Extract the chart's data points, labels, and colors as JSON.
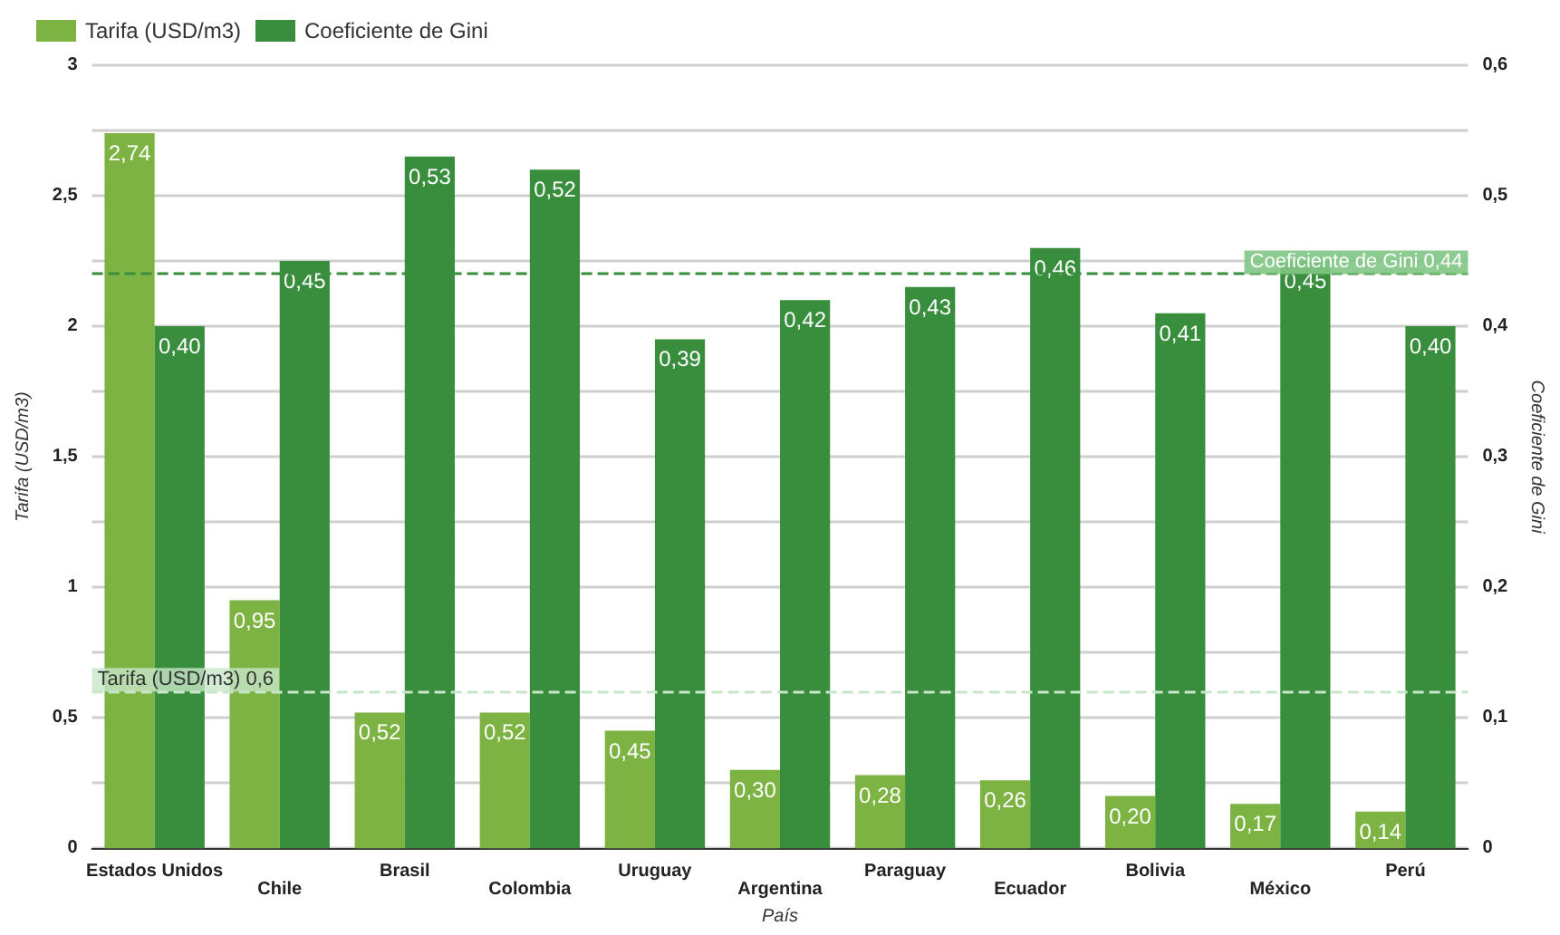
{
  "chart_data": {
    "type": "bar",
    "xlabel": "País",
    "ylabel": "Tarifa (USD/m3)",
    "y2label": "Coeficiente de Gini",
    "categories": [
      "Estados Unidos",
      "Chile",
      "Brasil",
      "Colombia",
      "Uruguay",
      "Argentina",
      "Paraguay",
      "Ecuador",
      "Bolivia",
      "México",
      "Perú"
    ],
    "series": [
      {
        "name": "Tarifa (USD/m3)",
        "color": "#7cb342",
        "values": [
          2.74,
          0.95,
          0.52,
          0.52,
          0.45,
          0.3,
          0.28,
          0.26,
          0.2,
          0.17,
          0.14
        ],
        "value_labels": [
          "2,74",
          "0,95",
          "0,52",
          "0,52",
          "0,45",
          "0,30",
          "0,28",
          "0,26",
          "0,20",
          "0,17",
          "0,14"
        ]
      },
      {
        "name": "Coeficiente de Gini",
        "color": "#388e3c",
        "axis": "y2",
        "values": [
          0.4,
          0.45,
          0.53,
          0.52,
          0.39,
          0.42,
          0.43,
          0.46,
          0.41,
          0.45,
          0.4
        ],
        "value_labels": [
          "0,40",
          "0,45",
          "0,53",
          "0,52",
          "0,39",
          "0,42",
          "0,43",
          "0,46",
          "0,41",
          "0,45",
          "0,40"
        ]
      }
    ],
    "ylim": [
      0,
      3
    ],
    "yticks": [
      0,
      {
        "value": 0.25,
        "label": null
      },
      {
        "value": 0.5,
        "label": "0,5"
      },
      {
        "value": 0.75,
        "label": null
      },
      1,
      {
        "value": 1.25,
        "label": null
      },
      {
        "value": 1.5,
        "label": "1,5"
      },
      {
        "value": 1.75,
        "label": null
      },
      2,
      {
        "value": 2.25,
        "label": null
      },
      {
        "value": 2.5,
        "label": "2,5"
      },
      {
        "value": 2.75,
        "label": null
      },
      3
    ],
    "y2lim": [
      0,
      0.6
    ],
    "y2ticks": [
      0,
      {
        "value": 0.05,
        "label": null
      },
      {
        "value": 0.1,
        "label": "0,1"
      },
      {
        "value": 0.15,
        "label": null
      },
      {
        "value": 0.2,
        "label": "0,2"
      },
      {
        "value": 0.25,
        "label": null
      },
      {
        "value": 0.3,
        "label": "0,3"
      },
      {
        "value": 0.35,
        "label": null
      },
      {
        "value": 0.4,
        "label": "0,4"
      },
      {
        "value": 0.45,
        "label": null
      },
      {
        "value": 0.5,
        "label": "0,5"
      },
      {
        "value": 0.55,
        "label": null
      },
      {
        "value": 0.6,
        "label": "0,6"
      }
    ],
    "ref_lines": [
      {
        "axis": "y",
        "value": 0.6,
        "label": "Tarifa (USD/m3) 0,6",
        "color": "#c8e6c9",
        "line_style": "dashed"
      },
      {
        "axis": "y2",
        "value": 0.44,
        "label": "Coeficiente de Gini 0,44",
        "color": "#388e3c",
        "line_style": "dashed"
      }
    ],
    "grid": "y",
    "legend": "top left"
  }
}
